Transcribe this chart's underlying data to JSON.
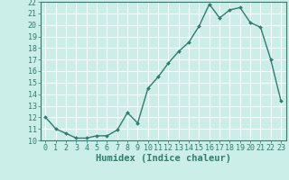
{
  "x": [
    0,
    1,
    2,
    3,
    4,
    5,
    6,
    7,
    8,
    9,
    10,
    11,
    12,
    13,
    14,
    15,
    16,
    17,
    18,
    19,
    20,
    21,
    22,
    23
  ],
  "y": [
    12.0,
    11.0,
    10.6,
    10.2,
    10.2,
    10.4,
    10.4,
    10.9,
    12.4,
    11.5,
    14.5,
    15.5,
    16.7,
    17.7,
    18.5,
    19.9,
    21.8,
    20.6,
    21.3,
    21.5,
    20.2,
    19.8,
    17.0,
    13.4
  ],
  "line_color": "#2e7d6e",
  "marker_color": "#2e7d6e",
  "bg_color": "#cceee8",
  "grid_color": "#ffffff",
  "xlabel": "Humidex (Indice chaleur)",
  "xlim": [
    -0.5,
    23.5
  ],
  "ylim": [
    10,
    22
  ],
  "yticks": [
    10,
    11,
    12,
    13,
    14,
    15,
    16,
    17,
    18,
    19,
    20,
    21,
    22
  ],
  "xticks": [
    0,
    1,
    2,
    3,
    4,
    5,
    6,
    7,
    8,
    9,
    10,
    11,
    12,
    13,
    14,
    15,
    16,
    17,
    18,
    19,
    20,
    21,
    22,
    23
  ],
  "tick_fontsize": 6,
  "label_fontsize": 7.5,
  "line_width": 1.0,
  "marker_size": 2.0
}
